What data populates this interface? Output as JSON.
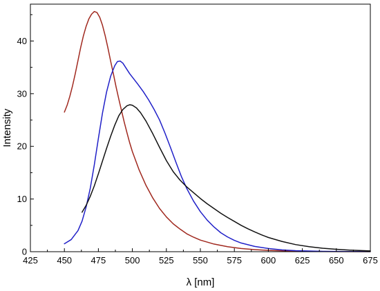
{
  "chart_data": {
    "type": "line",
    "xlabel": "λ [nm]",
    "ylabel": "Intensity",
    "xlim": [
      425,
      675
    ],
    "ylim": [
      0,
      47
    ],
    "xticks": [
      425,
      450,
      475,
      500,
      525,
      550,
      575,
      600,
      625,
      650,
      675
    ],
    "yticks": [
      0,
      10,
      20,
      30,
      40
    ],
    "xtick_labels": [
      "425",
      "450",
      "475",
      "500",
      "525",
      "550",
      "575",
      "600",
      "625",
      "650",
      "675"
    ],
    "ytick_labels": [
      "0",
      "10",
      "20",
      "30",
      "40"
    ],
    "grid": false,
    "legend": "none",
    "series": [
      {
        "color": "#a0281e",
        "points": [
          [
            450,
            26.5
          ],
          [
            452,
            27.8
          ],
          [
            454,
            29.5
          ],
          [
            456,
            31.5
          ],
          [
            458,
            33.8
          ],
          [
            460,
            36.3
          ],
          [
            462,
            38.8
          ],
          [
            464,
            41.0
          ],
          [
            466,
            42.8
          ],
          [
            468,
            44.2
          ],
          [
            470,
            45.1
          ],
          [
            472,
            45.6
          ],
          [
            474,
            45.4
          ],
          [
            476,
            44.5
          ],
          [
            478,
            43.0
          ],
          [
            480,
            41.0
          ],
          [
            482,
            38.7
          ],
          [
            484,
            36.2
          ],
          [
            486,
            33.8
          ],
          [
            488,
            31.3
          ],
          [
            490,
            29.0
          ],
          [
            492,
            26.8
          ],
          [
            494,
            24.6
          ],
          [
            496,
            22.6
          ],
          [
            498,
            20.7
          ],
          [
            500,
            19.0
          ],
          [
            505,
            15.5
          ],
          [
            510,
            12.6
          ],
          [
            515,
            10.2
          ],
          [
            520,
            8.2
          ],
          [
            525,
            6.6
          ],
          [
            530,
            5.3
          ],
          [
            535,
            4.3
          ],
          [
            540,
            3.4
          ],
          [
            545,
            2.75
          ],
          [
            550,
            2.2
          ],
          [
            560,
            1.45
          ],
          [
            570,
            0.95
          ],
          [
            580,
            0.6
          ],
          [
            590,
            0.4
          ],
          [
            600,
            0.25
          ],
          [
            620,
            0.1
          ],
          [
            640,
            0.04
          ],
          [
            660,
            0.02
          ],
          [
            675,
            0.01
          ]
        ]
      },
      {
        "color": "#2020c8",
        "points": [
          [
            450,
            1.5
          ],
          [
            455,
            2.3
          ],
          [
            460,
            4.0
          ],
          [
            463,
            5.8
          ],
          [
            466,
            8.5
          ],
          [
            469,
            12.0
          ],
          [
            472,
            16.5
          ],
          [
            475,
            21.5
          ],
          [
            478,
            26.3
          ],
          [
            481,
            30.3
          ],
          [
            484,
            33.3
          ],
          [
            487,
            35.3
          ],
          [
            489,
            36.1
          ],
          [
            491,
            36.2
          ],
          [
            493,
            35.8
          ],
          [
            495,
            35.0
          ],
          [
            498,
            33.8
          ],
          [
            501,
            32.8
          ],
          [
            504,
            31.8
          ],
          [
            508,
            30.4
          ],
          [
            512,
            28.8
          ],
          [
            516,
            27.0
          ],
          [
            520,
            25.0
          ],
          [
            524,
            22.5
          ],
          [
            528,
            19.8
          ],
          [
            532,
            17.0
          ],
          [
            536,
            14.3
          ],
          [
            540,
            12.0
          ],
          [
            545,
            9.6
          ],
          [
            550,
            7.6
          ],
          [
            555,
            6.0
          ],
          [
            560,
            4.7
          ],
          [
            565,
            3.6
          ],
          [
            570,
            2.8
          ],
          [
            575,
            2.15
          ],
          [
            580,
            1.65
          ],
          [
            590,
            1.0
          ],
          [
            600,
            0.6
          ],
          [
            610,
            0.35
          ],
          [
            620,
            0.2
          ],
          [
            640,
            0.07
          ],
          [
            660,
            0.03
          ],
          [
            675,
            0.01
          ]
        ]
      },
      {
        "color": "#111111",
        "points": [
          [
            463,
            7.5
          ],
          [
            466,
            8.8
          ],
          [
            469,
            10.5
          ],
          [
            472,
            12.5
          ],
          [
            475,
            14.8
          ],
          [
            478,
            17.2
          ],
          [
            481,
            19.6
          ],
          [
            484,
            21.9
          ],
          [
            487,
            24.0
          ],
          [
            490,
            25.8
          ],
          [
            493,
            27.0
          ],
          [
            496,
            27.7
          ],
          [
            498,
            27.9
          ],
          [
            500,
            27.8
          ],
          [
            503,
            27.3
          ],
          [
            506,
            26.4
          ],
          [
            510,
            24.8
          ],
          [
            515,
            22.4
          ],
          [
            520,
            19.8
          ],
          [
            525,
            17.3
          ],
          [
            530,
            15.2
          ],
          [
            535,
            13.6
          ],
          [
            540,
            12.3
          ],
          [
            545,
            11.2
          ],
          [
            550,
            10.1
          ],
          [
            555,
            9.1
          ],
          [
            560,
            8.2
          ],
          [
            565,
            7.3
          ],
          [
            570,
            6.5
          ],
          [
            575,
            5.75
          ],
          [
            580,
            5.0
          ],
          [
            585,
            4.35
          ],
          [
            590,
            3.75
          ],
          [
            595,
            3.2
          ],
          [
            600,
            2.7
          ],
          [
            610,
            1.95
          ],
          [
            620,
            1.35
          ],
          [
            630,
            0.95
          ],
          [
            640,
            0.65
          ],
          [
            650,
            0.45
          ],
          [
            660,
            0.3
          ],
          [
            675,
            0.15
          ]
        ]
      }
    ]
  }
}
